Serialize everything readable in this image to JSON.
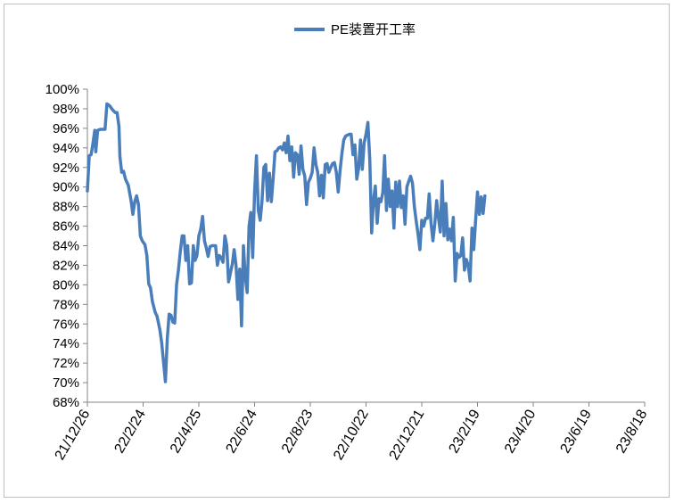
{
  "chart_data": {
    "type": "line",
    "title": "",
    "xlabel": "",
    "ylabel": "",
    "legend": {
      "position": "top-center"
    },
    "grid": false,
    "ylim": [
      68,
      100
    ],
    "y_ticks": [
      "68%",
      "70%",
      "72%",
      "74%",
      "76%",
      "78%",
      "80%",
      "82%",
      "84%",
      "86%",
      "88%",
      "90%",
      "92%",
      "94%",
      "96%",
      "98%",
      "100%"
    ],
    "x_ticks": [
      "21/12/26",
      "22/2/24",
      "22/4/25",
      "22/6/24",
      "22/8/23",
      "22/10/22",
      "22/12/21",
      "23/2/19",
      "23/4/20",
      "23/6/19",
      "23/8/18"
    ],
    "colors": {
      "series": "#4a7ebb",
      "axis": "#868686",
      "border": "#bfbfbf"
    },
    "series": [
      {
        "name": "PE装置开工率",
        "unit": "%",
        "points": [
          [
            "21/12/26",
            89.6
          ],
          [
            "21/12/28",
            93.2
          ],
          [
            "21/12/30",
            93.3
          ],
          [
            "22/1/1",
            94.5
          ],
          [
            "22/1/3",
            95.8
          ],
          [
            "22/1/4",
            93.6
          ],
          [
            "22/1/6",
            95.8
          ],
          [
            "22/1/9",
            95.9
          ],
          [
            "22/1/12",
            95.9
          ],
          [
            "22/1/14",
            95.9
          ],
          [
            "22/1/16",
            98.5
          ],
          [
            "22/1/19",
            98.3
          ],
          [
            "22/1/22",
            97.9
          ],
          [
            "22/1/25",
            97.6
          ],
          [
            "22/1/27",
            97.6
          ],
          [
            "22/1/29",
            96.2
          ],
          [
            "22/1/30",
            93.1
          ],
          [
            "22/2/1",
            91.5
          ],
          [
            "22/2/3",
            91.6
          ],
          [
            "22/2/5",
            90.8
          ],
          [
            "22/2/8",
            90.2
          ],
          [
            "22/2/11",
            88.6
          ],
          [
            "22/2/13",
            87.2
          ],
          [
            "22/2/15",
            88.5
          ],
          [
            "22/2/17",
            89.1
          ],
          [
            "22/2/19",
            88.2
          ],
          [
            "22/2/21",
            85.0
          ],
          [
            "22/2/23",
            84.5
          ],
          [
            "22/2/26",
            84.1
          ],
          [
            "22/2/28",
            83.0
          ],
          [
            "22/3/2",
            80.1
          ],
          [
            "22/3/4",
            79.7
          ],
          [
            "22/3/6",
            78.3
          ],
          [
            "22/3/9",
            77.2
          ],
          [
            "22/3/11",
            76.8
          ],
          [
            "22/3/14",
            75.4
          ],
          [
            "22/3/16",
            74.1
          ],
          [
            "22/3/18",
            72.1
          ],
          [
            "22/3/20",
            70.1
          ],
          [
            "22/3/22",
            74.5
          ],
          [
            "22/3/24",
            77.0
          ],
          [
            "22/3/26",
            76.9
          ],
          [
            "22/3/28",
            76.2
          ],
          [
            "22/3/30",
            76.1
          ],
          [
            "22/4/1",
            80.0
          ],
          [
            "22/4/3",
            81.5
          ],
          [
            "22/4/5",
            83.4
          ],
          [
            "22/4/7",
            85.0
          ],
          [
            "22/4/9",
            85.0
          ],
          [
            "22/4/11",
            82.5
          ],
          [
            "22/4/13",
            84.0
          ],
          [
            "22/4/15",
            80.1
          ],
          [
            "22/4/17",
            80.2
          ],
          [
            "22/4/19",
            84.0
          ],
          [
            "22/4/21",
            82.5
          ],
          [
            "22/4/23",
            83.0
          ],
          [
            "22/4/25",
            85.0
          ],
          [
            "22/4/27",
            85.7
          ],
          [
            "22/4/29",
            87.0
          ],
          [
            "22/5/1",
            84.5
          ],
          [
            "22/5/3",
            83.8
          ],
          [
            "22/5/5",
            82.9
          ],
          [
            "22/5/7",
            83.9
          ],
          [
            "22/5/9",
            84.0
          ],
          [
            "22/5/11",
            84.0
          ],
          [
            "22/5/13",
            84.0
          ],
          [
            "22/5/15",
            82.0
          ],
          [
            "22/5/17",
            83.0
          ],
          [
            "22/5/19",
            82.8
          ],
          [
            "22/5/21",
            82.3
          ],
          [
            "22/5/23",
            85.0
          ],
          [
            "22/5/25",
            84.0
          ],
          [
            "22/5/27",
            80.3
          ],
          [
            "22/5/29",
            81.2
          ],
          [
            "22/5/31",
            82.1
          ],
          [
            "22/6/2",
            83.6
          ],
          [
            "22/6/4",
            82.0
          ],
          [
            "22/6/6",
            78.5
          ],
          [
            "22/6/8",
            81.6
          ],
          [
            "22/6/10",
            75.8
          ],
          [
            "22/6/12",
            84.0
          ],
          [
            "22/6/14",
            80.8
          ],
          [
            "22/6/16",
            79.2
          ],
          [
            "22/6/18",
            86.0
          ],
          [
            "22/6/20",
            87.4
          ],
          [
            "22/6/22",
            82.8
          ],
          [
            "22/6/24",
            89.5
          ],
          [
            "22/6/26",
            93.2
          ],
          [
            "22/6/28",
            87.6
          ],
          [
            "22/6/30",
            86.6
          ],
          [
            "22/7/2",
            88.5
          ],
          [
            "22/7/4",
            92.0
          ],
          [
            "22/7/6",
            92.3
          ],
          [
            "22/7/8",
            88.6
          ],
          [
            "22/7/10",
            91.4
          ],
          [
            "22/7/12",
            88.5
          ],
          [
            "22/7/14",
            90.8
          ],
          [
            "22/7/16",
            93.6
          ],
          [
            "22/7/18",
            93.7
          ],
          [
            "22/7/20",
            94.0
          ],
          [
            "22/7/22",
            94.1
          ],
          [
            "22/7/24",
            93.8
          ],
          [
            "22/7/26",
            94.5
          ],
          [
            "22/7/28",
            93.5
          ],
          [
            "22/7/30",
            95.2
          ],
          [
            "22/8/1",
            92.7
          ],
          [
            "22/8/3",
            94.1
          ],
          [
            "22/8/5",
            91.0
          ],
          [
            "22/8/7",
            93.5
          ],
          [
            "22/8/9",
            93.3
          ],
          [
            "22/8/11",
            91.3
          ],
          [
            "22/8/13",
            94.2
          ],
          [
            "22/8/15",
            91.8
          ],
          [
            "22/8/17",
            91.1
          ],
          [
            "22/8/19",
            88.2
          ],
          [
            "22/8/21",
            90.5
          ],
          [
            "22/8/23",
            90.9
          ],
          [
            "22/8/25",
            91.5
          ],
          [
            "22/8/27",
            94.0
          ],
          [
            "22/8/29",
            92.3
          ],
          [
            "22/8/31",
            91.5
          ],
          [
            "22/9/2",
            89.1
          ],
          [
            "22/9/4",
            91.2
          ],
          [
            "22/9/6",
            88.9
          ],
          [
            "22/9/8",
            92.3
          ],
          [
            "22/9/10",
            92.4
          ],
          [
            "22/9/12",
            91.5
          ],
          [
            "22/9/14",
            92.0
          ],
          [
            "22/9/16",
            92.4
          ],
          [
            "22/9/18",
            92.5
          ],
          [
            "22/9/20",
            91.5
          ],
          [
            "22/9/22",
            89.5
          ],
          [
            "22/9/24",
            91.6
          ],
          [
            "22/9/26",
            93.4
          ],
          [
            "22/9/28",
            94.8
          ],
          [
            "22/9/30",
            95.2
          ],
          [
            "22/10/2",
            95.3
          ],
          [
            "22/10/4",
            95.4
          ],
          [
            "22/10/6",
            95.4
          ],
          [
            "22/10/8",
            93.3
          ],
          [
            "22/10/10",
            94.3
          ],
          [
            "22/10/12",
            90.8
          ],
          [
            "22/10/14",
            91.9
          ],
          [
            "22/10/16",
            94.8
          ],
          [
            "22/10/18",
            91.8
          ],
          [
            "22/10/20",
            94.5
          ],
          [
            "22/10/22",
            95.4
          ],
          [
            "22/10/24",
            96.6
          ],
          [
            "22/10/26",
            92.8
          ],
          [
            "22/10/28",
            85.3
          ],
          [
            "22/10/30",
            88.6
          ],
          [
            "22/11/1",
            90.1
          ],
          [
            "22/11/3",
            86.3
          ],
          [
            "22/11/5",
            88.8
          ],
          [
            "22/11/7",
            88.5
          ],
          [
            "22/11/9",
            89.4
          ],
          [
            "22/11/11",
            93.2
          ],
          [
            "22/11/13",
            87.6
          ],
          [
            "22/11/15",
            90.8
          ],
          [
            "22/11/17",
            88.0
          ],
          [
            "22/11/19",
            89.6
          ],
          [
            "22/11/21",
            85.8
          ],
          [
            "22/11/23",
            90.5
          ],
          [
            "22/11/25",
            88.0
          ],
          [
            "22/11/27",
            90.6
          ],
          [
            "22/11/29",
            87.9
          ],
          [
            "22/12/1",
            89.1
          ],
          [
            "22/12/3",
            86.2
          ],
          [
            "22/12/5",
            90.0
          ],
          [
            "22/12/7",
            90.6
          ],
          [
            "22/12/9",
            91.1
          ],
          [
            "22/12/11",
            90.4
          ],
          [
            "22/12/13",
            88.0
          ],
          [
            "22/12/15",
            86.5
          ],
          [
            "22/12/17",
            85.2
          ],
          [
            "22/12/19",
            83.6
          ],
          [
            "22/12/21",
            86.6
          ],
          [
            "22/12/23",
            86.0
          ],
          [
            "22/12/25",
            86.8
          ],
          [
            "22/12/27",
            86.8
          ],
          [
            "22/12/29",
            89.3
          ],
          [
            "22/12/31",
            86.3
          ],
          [
            "23/1/2",
            84.5
          ],
          [
            "23/1/4",
            86.2
          ],
          [
            "23/1/6",
            88.6
          ],
          [
            "23/1/8",
            86.8
          ],
          [
            "23/1/10",
            85.4
          ],
          [
            "23/1/12",
            90.6
          ],
          [
            "23/1/14",
            85.0
          ],
          [
            "23/1/16",
            88.3
          ],
          [
            "23/1/18",
            84.6
          ],
          [
            "23/1/20",
            85.7
          ],
          [
            "23/1/22",
            84.5
          ],
          [
            "23/1/24",
            86.9
          ],
          [
            "23/1/26",
            80.4
          ],
          [
            "23/1/28",
            83.2
          ],
          [
            "23/1/30",
            82.8
          ],
          [
            "23/2/1",
            83.0
          ],
          [
            "23/2/3",
            84.8
          ],
          [
            "23/2/5",
            81.5
          ],
          [
            "23/2/7",
            82.6
          ],
          [
            "23/2/9",
            82.0
          ],
          [
            "23/2/11",
            80.4
          ],
          [
            "23/2/13",
            85.8
          ],
          [
            "23/2/15",
            83.6
          ],
          [
            "23/2/17",
            86.6
          ],
          [
            "23/2/19",
            89.5
          ],
          [
            "23/2/21",
            87.2
          ],
          [
            "23/2/23",
            89.0
          ],
          [
            "23/2/25",
            87.3
          ],
          [
            "23/2/27",
            89.1
          ]
        ]
      }
    ]
  }
}
